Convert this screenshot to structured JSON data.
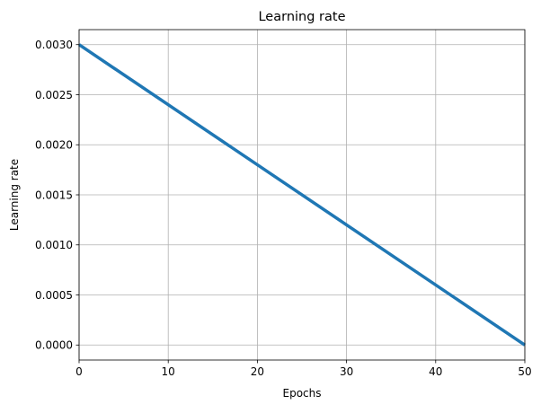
{
  "chart_data": {
    "type": "line",
    "title": "Learning rate",
    "xlabel": "Epochs",
    "ylabel": "Learning rate",
    "xlim": [
      0,
      50
    ],
    "ylim": [
      -0.00015,
      0.00315
    ],
    "x_ticks": [
      0,
      10,
      20,
      30,
      40,
      50
    ],
    "x_tick_labels": [
      "0",
      "10",
      "20",
      "30",
      "40",
      "50"
    ],
    "y_ticks": [
      0.0,
      0.0005,
      0.001,
      0.0015,
      0.002,
      0.0025,
      0.003
    ],
    "y_tick_labels": [
      "0.0000",
      "0.0005",
      "0.0010",
      "0.0015",
      "0.0020",
      "0.0025",
      "0.0030"
    ],
    "grid": true,
    "legend": "none",
    "series": [
      {
        "color": "#1f77b4",
        "x": [
          0,
          50
        ],
        "y": [
          0.003,
          0.0
        ]
      }
    ],
    "colors": {
      "grid": "#b0b0b0",
      "axes": "#000000"
    }
  }
}
